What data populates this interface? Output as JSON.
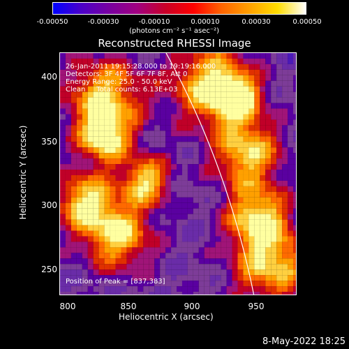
{
  "colorbar": {
    "ticks": [
      "-0.00050",
      "-0.00030",
      "-0.00010",
      "0.00010",
      "0.00030",
      "0.00050"
    ],
    "units": "(photons cm⁻² s⁻¹ asec⁻²)",
    "colors": [
      "#0000ff",
      "#4b00c8",
      "#7800a0",
      "#a00080",
      "#c80028",
      "#ff0000",
      "#ff6400",
      "#ffa000",
      "#ffdc00",
      "#ffffff"
    ]
  },
  "title": "Reconstructed RHESSI Image",
  "info": {
    "time": "26-Jan-2011 19:15:28.000 to 19:19:16.000",
    "detectors": "Detectors: 3F 4F 5F 6F 7F 8F, Att 0",
    "energy": "Energy Range: 25.0 - 50.0 keV",
    "method": "Clean     Total counts: 6.13E+03",
    "peak": "Position of Peak = [837,383]"
  },
  "axes": {
    "xlabel": "Heliocentric X (arcsec)",
    "ylabel": "Heliocentric Y (arcsec)",
    "xticks": [
      "800",
      "850",
      "900",
      "950"
    ],
    "yticks": [
      "400",
      "350",
      "300",
      "250"
    ],
    "xlim": [
      790,
      980
    ],
    "ylim": [
      225,
      420
    ]
  },
  "footer": "8-May-2022 18:25"
}
